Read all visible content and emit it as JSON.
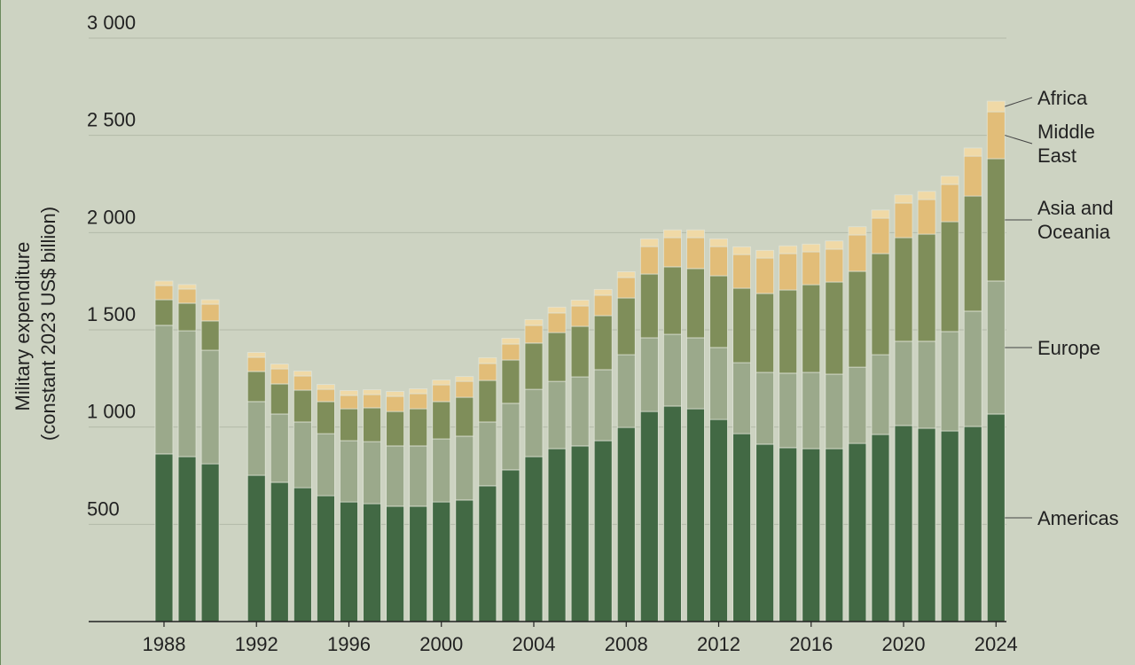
{
  "chart_data": {
    "type": "stacked_bar",
    "y_label": [
      "Military expenditure",
      "(constant 2023 US$ billion)"
    ],
    "x": [
      1988,
      1989,
      1990,
      1992,
      1993,
      1994,
      1995,
      1996,
      1997,
      1998,
      1999,
      2000,
      2001,
      2002,
      2003,
      2004,
      2005,
      2006,
      2007,
      2008,
      2009,
      2010,
      2011,
      2012,
      2013,
      2014,
      2015,
      2016,
      2017,
      2018,
      2019,
      2020,
      2021,
      2022,
      2023,
      2024
    ],
    "xlim": [
      1984.74,
      2024.45
    ],
    "xticks": [
      1988,
      1992,
      1996,
      2000,
      2004,
      2008,
      2012,
      2016,
      2020,
      2024
    ],
    "ylim": [
      0,
      3000
    ],
    "yticks": [
      500,
      {
        "value": 1000,
        "label": "1 000"
      },
      {
        "value": 1500,
        "label": "1 500"
      },
      {
        "value": 2000,
        "label": "2 000"
      },
      {
        "value": 2500,
        "label": "2 500"
      },
      {
        "value": 3000,
        "label": "3 000"
      }
    ],
    "grid": true,
    "series": [
      {
        "name": "Americas",
        "color": "#426944",
        "values": [
          862,
          848,
          811,
          752,
          716,
          688,
          647,
          615,
          606,
          593,
          593,
          615,
          625,
          698,
          780,
          848,
          889,
          903,
          930,
          998,
          1080,
          1108,
          1094,
          1039,
          966,
          912,
          894,
          889,
          889,
          916,
          962,
          1008,
          994,
          980,
          1003,
          1067
        ]
      },
      {
        "name": "Europe",
        "color": "#9ba98b",
        "values": [
          661,
          647,
          584,
          379,
          351,
          338,
          319,
          315,
          319,
          310,
          310,
          324,
          328,
          328,
          342,
          346,
          346,
          355,
          365,
          374,
          379,
          369,
          365,
          370,
          365,
          369,
          383,
          392,
          383,
          392,
          410,
          433,
          447,
          511,
          593,
          684
        ]
      },
      {
        "name": "Asia and Oceania",
        "color": "#7f8e5a",
        "values": [
          132,
          142,
          151,
          155,
          155,
          164,
          165,
          164,
          174,
          177,
          191,
          192,
          200,
          214,
          223,
          238,
          251,
          260,
          278,
          292,
          328,
          347,
          356,
          369,
          383,
          406,
          428,
          451,
          474,
          493,
          520,
          533,
          551,
          565,
          592,
          629
        ]
      },
      {
        "name": "Middle East",
        "color": "#e2bd78",
        "values": [
          73,
          73,
          86,
          73,
          77,
          73,
          63,
          69,
          68,
          78,
          78,
          86,
          82,
          87,
          82,
          91,
          101,
          105,
          105,
          105,
          141,
          150,
          159,
          150,
          173,
          182,
          187,
          169,
          169,
          187,
          182,
          178,
          178,
          192,
          205,
          241
        ]
      },
      {
        "name": "Africa",
        "color": "#f0d9a6",
        "values": [
          23,
          23,
          23,
          25,
          25,
          25,
          25,
          25,
          25,
          25,
          25,
          25,
          25,
          30,
          30,
          30,
          30,
          30,
          30,
          30,
          40,
          40,
          40,
          40,
          40,
          40,
          40,
          40,
          42,
          42,
          42,
          42,
          42,
          42,
          42,
          55
        ]
      }
    ]
  }
}
